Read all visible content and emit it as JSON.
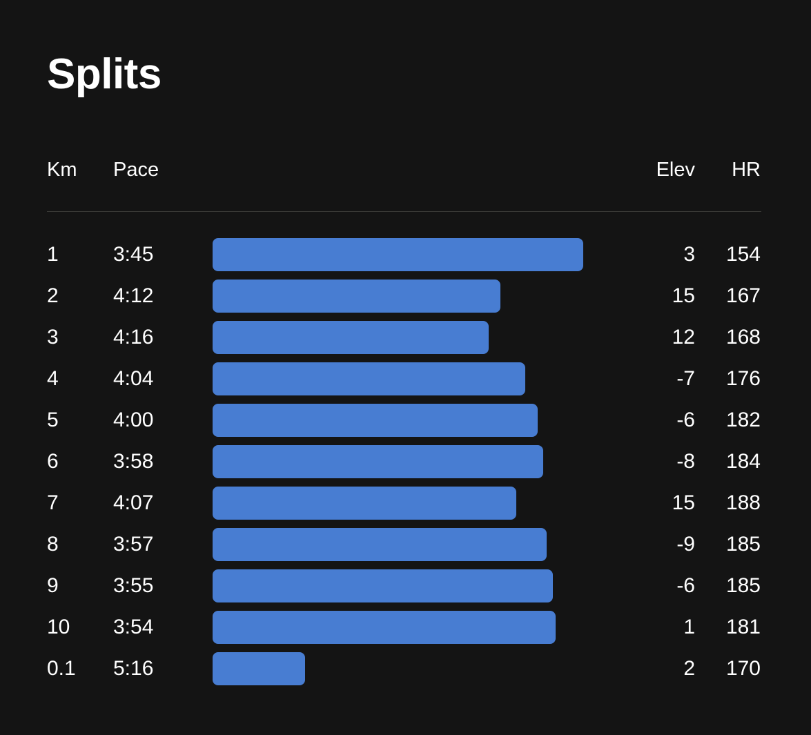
{
  "title": "Splits",
  "headers": {
    "km": "Km",
    "pace": "Pace",
    "elev": "Elev",
    "hr": "HR"
  },
  "colors": {
    "background": "#141414",
    "bar": "#487dd2",
    "text": "#ffffff",
    "divider": "#3a3a36"
  },
  "chart_data": {
    "type": "bar",
    "orientation": "horizontal",
    "title": "Splits",
    "columns": [
      "Km",
      "Pace",
      "Elev",
      "HR"
    ],
    "rows": [
      {
        "km": "1",
        "pace": "3:45",
        "elev": "3",
        "hr": "154"
      },
      {
        "km": "2",
        "pace": "4:12",
        "elev": "15",
        "hr": "167"
      },
      {
        "km": "3",
        "pace": "4:16",
        "elev": "12",
        "hr": "168"
      },
      {
        "km": "4",
        "pace": "4:04",
        "elev": "-7",
        "hr": "176"
      },
      {
        "km": "5",
        "pace": "4:00",
        "elev": "-6",
        "hr": "182"
      },
      {
        "km": "6",
        "pace": "3:58",
        "elev": "-8",
        "hr": "184"
      },
      {
        "km": "7",
        "pace": "4:07",
        "elev": "15",
        "hr": "188"
      },
      {
        "km": "8",
        "pace": "3:57",
        "elev": "-9",
        "hr": "185"
      },
      {
        "km": "9",
        "pace": "3:55",
        "elev": "-6",
        "hr": "185"
      },
      {
        "km": "10",
        "pace": "3:54",
        "elev": "1",
        "hr": "181"
      },
      {
        "km": "0.1",
        "pace": "5:16",
        "elev": "2",
        "hr": "170"
      }
    ]
  }
}
